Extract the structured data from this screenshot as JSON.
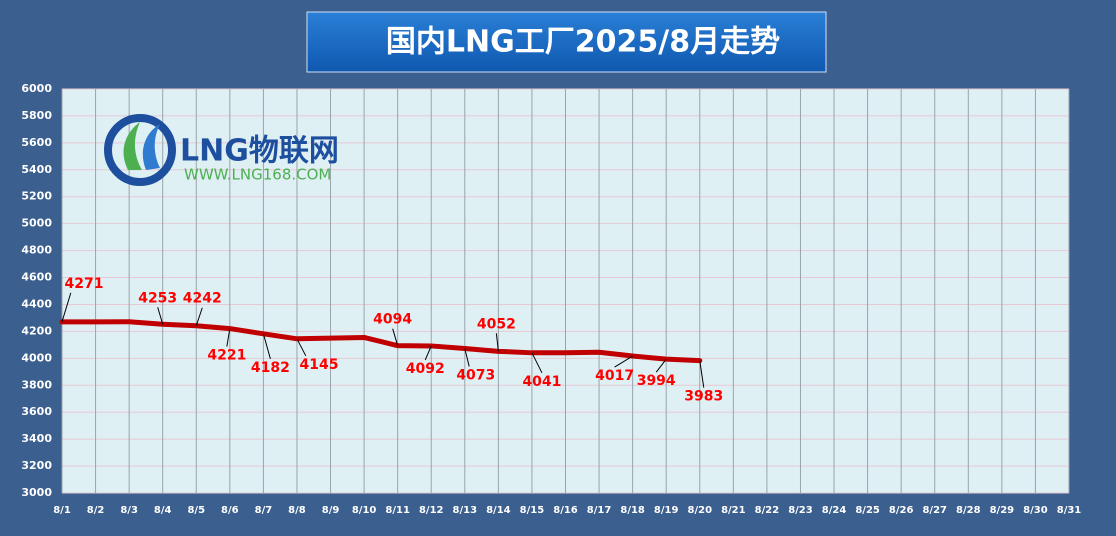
{
  "chart_data": {
    "type": "line",
    "title": "国内LNG工厂2025/8月走势",
    "logo": {
      "text": "LNG物联网",
      "url": "WWW.LNG168.COM"
    },
    "categories": [
      "8/1",
      "8/2",
      "8/3",
      "8/4",
      "8/5",
      "8/6",
      "8/7",
      "8/8",
      "8/9",
      "8/10",
      "8/11",
      "8/12",
      "8/13",
      "8/14",
      "8/15",
      "8/16",
      "8/17",
      "8/18",
      "8/19",
      "8/20",
      "8/21",
      "8/22",
      "8/23",
      "8/24",
      "8/25",
      "8/26",
      "8/27",
      "8/28",
      "8/29",
      "8/30",
      "8/31"
    ],
    "series": [
      {
        "name": "LNG",
        "color": "#c00000",
        "values": [
          4271,
          4271,
          4272,
          4253,
          4242,
          4221,
          4182,
          4145,
          4150,
          4155,
          4094,
          4092,
          4073,
          4052,
          4041,
          4041,
          4045,
          4017,
          3994,
          3983,
          null,
          null,
          null,
          null,
          null,
          null,
          null,
          null,
          null,
          null,
          null
        ],
        "value_labels": [
          "4271",
          null,
          null,
          "4253",
          "4242",
          "4221",
          "4182",
          "4145",
          null,
          null,
          "4094",
          "4092",
          "4073",
          "4052",
          "4041",
          null,
          null,
          "4017",
          "3994",
          "3983",
          null,
          null,
          null,
          null,
          null,
          null,
          null,
          null,
          null,
          null,
          null
        ]
      }
    ],
    "ylim": [
      3000,
      6000
    ],
    "yticks": [
      3000,
      3200,
      3400,
      3600,
      3800,
      4000,
      4200,
      4400,
      4600,
      4800,
      5000,
      5200,
      5400,
      5600,
      5800,
      6000
    ],
    "grid": true
  }
}
